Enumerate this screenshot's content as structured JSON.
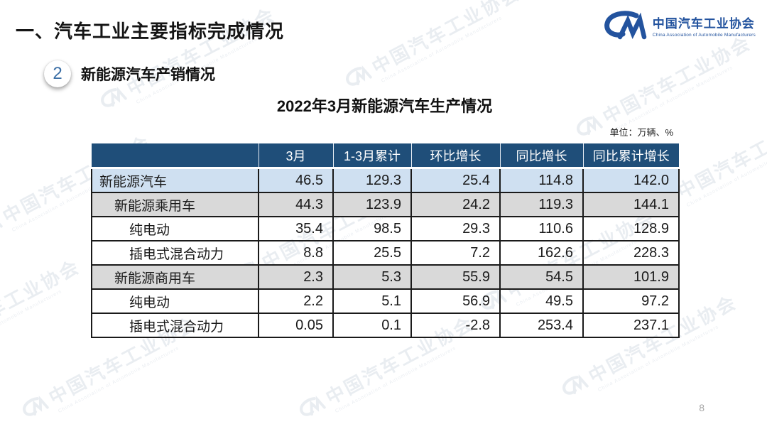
{
  "page": {
    "title": "一、汽车工业主要指标完成情况",
    "page_number": "8"
  },
  "logo": {
    "name_zh": "中国汽车工业协会",
    "name_en": "China Association of Automobile Manufacturers",
    "color": "#23539e"
  },
  "section": {
    "number": "2",
    "title": "新能源汽车产销情况"
  },
  "table": {
    "title": "2022年3月新能源汽车生产情况",
    "unit_label": "单位：万辆、%",
    "columns": [
      "",
      "3月",
      "1-3月累计",
      "环比增长",
      "同比增长",
      "同比累计增长"
    ],
    "rows": [
      {
        "label": "新能源汽车",
        "indent": 0,
        "style": "bg-blue",
        "values": [
          "46.5",
          "129.3",
          "25.4",
          "114.8",
          "142.0"
        ]
      },
      {
        "label": "新能源乘用车",
        "indent": 1,
        "style": "bg-gray",
        "values": [
          "44.3",
          "123.9",
          "24.2",
          "119.3",
          "144.1"
        ]
      },
      {
        "label": "纯电动",
        "indent": 2,
        "style": "plain",
        "values": [
          "35.4",
          "98.5",
          "29.3",
          "110.6",
          "128.9"
        ]
      },
      {
        "label": "插电式混合动力",
        "indent": 2,
        "style": "plain",
        "values": [
          "8.8",
          "25.5",
          "7.2",
          "162.6",
          "228.3"
        ]
      },
      {
        "label": "新能源商用车",
        "indent": 1,
        "style": "bg-gray",
        "values": [
          "2.3",
          "5.3",
          "55.9",
          "54.5",
          "101.9"
        ]
      },
      {
        "label": "纯电动",
        "indent": 2,
        "style": "plain",
        "values": [
          "2.2",
          "5.1",
          "56.9",
          "49.5",
          "97.2"
        ]
      },
      {
        "label": "插电式混合动力",
        "indent": 2,
        "style": "plain",
        "values": [
          "0.05",
          "0.1",
          "-2.8",
          "253.4",
          "237.1"
        ]
      }
    ],
    "colors": {
      "header_bg": "#1f4e79",
      "header_text": "#ffffff",
      "row_blue": "#cfe0f1",
      "row_gray": "#d9d9d9",
      "border": "#1a1a1a"
    }
  },
  "watermark": {
    "text": "中国汽车工业协会",
    "subtext": "China Association of Automobile Manufacturers"
  }
}
